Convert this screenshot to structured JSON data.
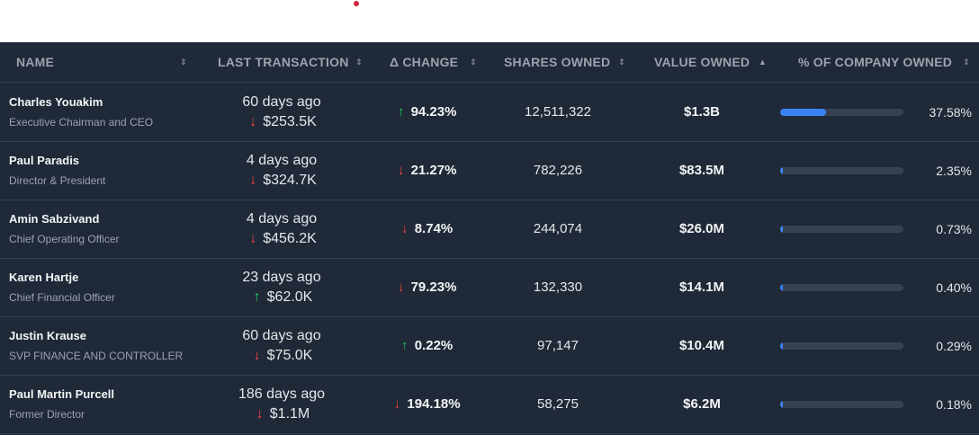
{
  "columns": {
    "name": "NAME",
    "last_transaction": "LAST TRANSACTION",
    "change": "Δ CHANGE",
    "shares_owned": "SHARES OWNED",
    "value_owned": "VALUE OWNED",
    "pct_owned": "% OF COMPANY OWNED"
  },
  "sort_icons": {
    "unsorted": "⇕",
    "ascending": "▲"
  },
  "colors": {
    "up": "#22c55e",
    "down": "#ef4444",
    "bar": "#3b82f6"
  },
  "rows": [
    {
      "name": "Charles Youakim",
      "title": "Executive Chairman and CEO",
      "tx_date": "60 days ago",
      "tx_dir": "down",
      "tx_amount": "$253.5K",
      "chg_dir": "up",
      "change": "94.23%",
      "shares": "12,511,322",
      "value": "$1.3B",
      "pct_label": "37.58%",
      "pct_value": 37.58
    },
    {
      "name": "Paul Paradis",
      "title": "Director & President",
      "tx_date": "4 days ago",
      "tx_dir": "down",
      "tx_amount": "$324.7K",
      "chg_dir": "down",
      "change": "21.27%",
      "shares": "782,226",
      "value": "$83.5M",
      "pct_label": "2.35%",
      "pct_value": 2.35
    },
    {
      "name": "Amin Sabzivand",
      "title": "Chief Operating Officer",
      "tx_date": "4 days ago",
      "tx_dir": "down",
      "tx_amount": "$456.2K",
      "chg_dir": "down",
      "change": "8.74%",
      "shares": "244,074",
      "value": "$26.0M",
      "pct_label": "0.73%",
      "pct_value": 0.73
    },
    {
      "name": "Karen Hartje",
      "title": "Chief Financial Officer",
      "tx_date": "23 days ago",
      "tx_dir": "up",
      "tx_amount": "$62.0K",
      "chg_dir": "down",
      "change": "79.23%",
      "shares": "132,330",
      "value": "$14.1M",
      "pct_label": "0.40%",
      "pct_value": 0.4
    },
    {
      "name": "Justin Krause",
      "title": "SVP FINANCE AND CONTROLLER",
      "tx_date": "60 days ago",
      "tx_dir": "down",
      "tx_amount": "$75.0K",
      "chg_dir": "up",
      "change": "0.22%",
      "shares": "97,147",
      "value": "$10.4M",
      "pct_label": "0.29%",
      "pct_value": 0.29
    },
    {
      "name": "Paul Martin Purcell",
      "title": "Former Director",
      "tx_date": "186 days ago",
      "tx_dir": "down",
      "tx_amount": "$1.1M",
      "chg_dir": "down",
      "change": "194.18%",
      "shares": "58,275",
      "value": "$6.2M",
      "pct_label": "0.18%",
      "pct_value": 0.18
    }
  ]
}
